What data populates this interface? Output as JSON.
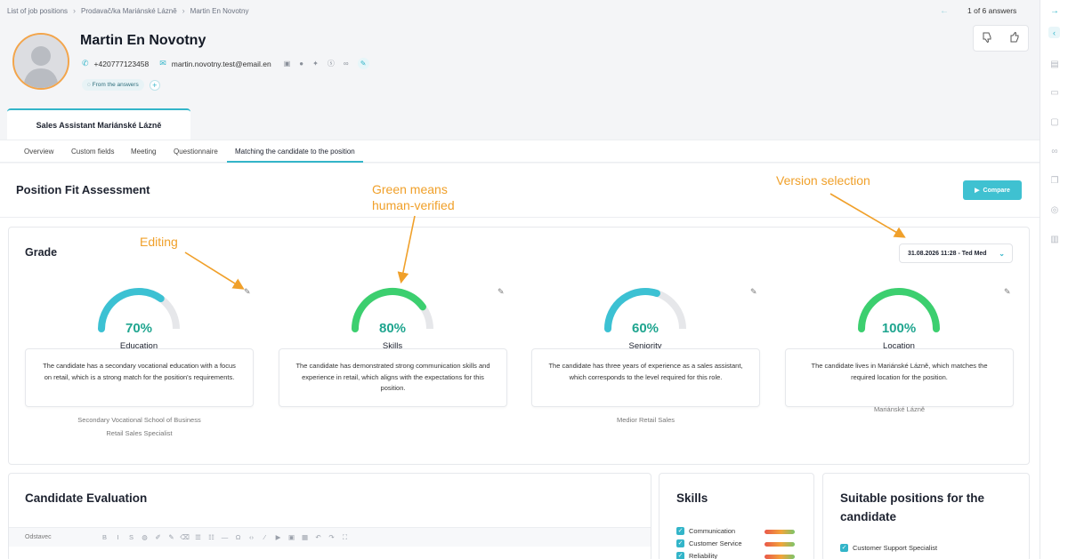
{
  "breadcrumb": [
    "List of job positions",
    "Prodavač/ka Mariánské Lázně",
    "Martin En Novotny"
  ],
  "pager": {
    "text": "1 of 6 answers"
  },
  "candidate": {
    "name": "Martin En Novotny",
    "phone": "+420777123458",
    "email": "martin.novotny.test@email.en",
    "tag": "From the answers"
  },
  "position_tab": "Sales Assistant Mariánské Lázně",
  "tabs": [
    "Overview",
    "Custom fields",
    "Meeting",
    "Questionnaire",
    "Matching the candidate to the position"
  ],
  "assessment": {
    "title": "Position Fit Assessment",
    "compare_label": "Compare",
    "grade_title": "Grade",
    "version": "31.08.2026 11:28 - Ted Med",
    "grades": [
      {
        "percent": "70%",
        "value": 0.7,
        "label": "Education",
        "color": "#3cc1d3",
        "description": "The candidate has a secondary vocational education with a focus on retail, which is a strong match for the position's requirements.",
        "sub": [
          "Secondary Vocational School of Business",
          "Retail Sales Specialist"
        ]
      },
      {
        "percent": "80%",
        "value": 0.8,
        "label": "Skills",
        "color": "#3ccf6f",
        "description": "The candidate has demonstrated strong communication skills and experience in retail, which aligns with the expectations for this position.",
        "sub": []
      },
      {
        "percent": "60%",
        "value": 0.6,
        "label": "Seniority",
        "color": "#3cc1d3",
        "description": "The candidate has three years of experience as a sales assistant, which corresponds to the level required for this role.",
        "sub": [
          "Medior Retail Sales"
        ]
      },
      {
        "percent": "100%",
        "value": 1.0,
        "label": "Location",
        "color": "#3ccf6f",
        "description": "The candidate lives in Mariánské Lázně, which matches the required location for the position.",
        "sub": [
          "Mariánské Lázně"
        ]
      }
    ]
  },
  "annotations": {
    "editing": "Editing",
    "green_line1": "Green means",
    "green_line2": "human-verified",
    "version": "Version selection",
    "color": "#f0a02a"
  },
  "evaluation": {
    "title": "Candidate Evaluation",
    "format": "Odstavec"
  },
  "skills": {
    "title": "Skills",
    "items": [
      "Communication",
      "Customer Service",
      "Reliability"
    ]
  },
  "positions": {
    "title": "Suitable positions for the candidate",
    "items": [
      "Customer Support Specialist"
    ]
  },
  "icons": [
    "phone-icon",
    "mail-icon",
    "linkedin-icon",
    "facebook-icon",
    "twitter-icon",
    "skype-icon",
    "link-icon",
    "pencil-icon",
    "chat-icon",
    "plus-icon",
    "thumbs-down-icon",
    "thumbs-up-icon",
    "play-icon",
    "chevron-down-icon",
    "arrow-left-icon",
    "arrow-right-icon"
  ]
}
